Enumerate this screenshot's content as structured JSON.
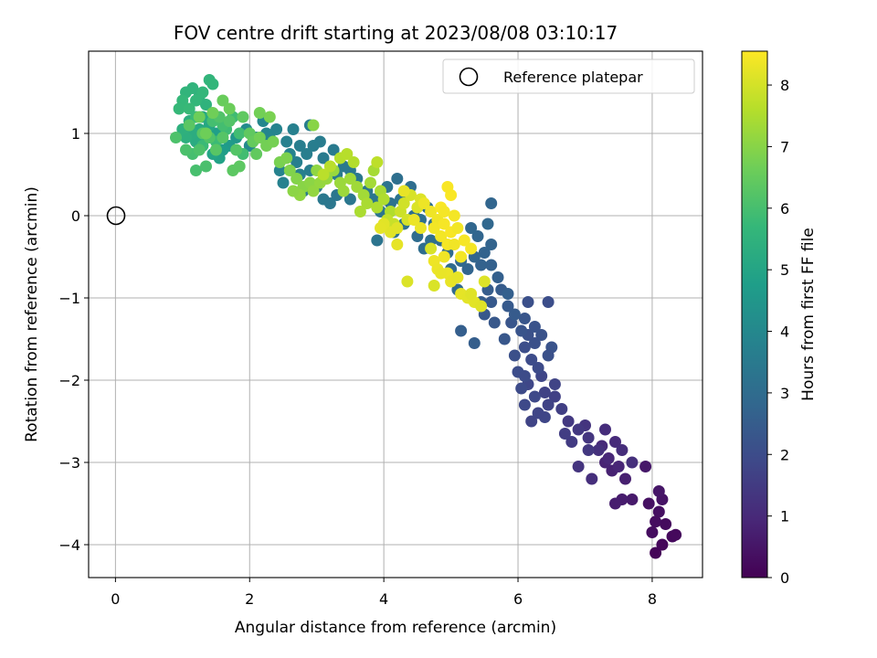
{
  "chart_data": {
    "type": "scatter",
    "title": "FOV centre drift starting at 2023/08/08 03:10:17",
    "xlabel": "Angular distance from reference (arcmin)",
    "ylabel": "Rotation from reference (arcmin)",
    "xlim": [
      -0.4,
      8.75
    ],
    "ylim": [
      -4.4,
      2.0
    ],
    "xticks": [
      0,
      2,
      4,
      6,
      8
    ],
    "yticks": [
      -4,
      -3,
      -2,
      -1,
      0,
      1
    ],
    "grid": true,
    "legend": {
      "position": "top-right",
      "entries": [
        "Reference platepar"
      ]
    },
    "reference_point": {
      "x": 0,
      "y": 0,
      "marker": "open-circle"
    },
    "colorbar": {
      "label": "Hours from first FF file",
      "range": [
        0,
        8.55
      ],
      "ticks": [
        0,
        1,
        2,
        3,
        4,
        5,
        6,
        7,
        8
      ],
      "colormap": "viridis",
      "stops": [
        "#440154",
        "#482878",
        "#3e4989",
        "#31688e",
        "#26828e",
        "#1f9e89",
        "#35b779",
        "#6ece58",
        "#b5de2b",
        "#fde725"
      ]
    },
    "points": [
      [
        8.05,
        -4.1,
        0.1
      ],
      [
        8.15,
        -4.0,
        0.15
      ],
      [
        8.3,
        -3.9,
        0.2
      ],
      [
        8.2,
        -3.75,
        0.25
      ],
      [
        8.0,
        -3.85,
        0.3
      ],
      [
        8.1,
        -3.6,
        0.35
      ],
      [
        7.95,
        -3.5,
        0.4
      ],
      [
        8.15,
        -3.45,
        0.45
      ],
      [
        8.1,
        -3.35,
        0.5
      ],
      [
        7.9,
        -3.05,
        0.55
      ],
      [
        8.35,
        -3.88,
        0.2
      ],
      [
        8.05,
        -3.72,
        0.3
      ],
      [
        7.7,
        -3.45,
        0.6
      ],
      [
        7.55,
        -3.45,
        0.65
      ],
      [
        7.45,
        -3.5,
        0.7
      ],
      [
        7.6,
        -3.2,
        0.75
      ],
      [
        7.4,
        -3.1,
        0.8
      ],
      [
        7.3,
        -3.0,
        0.85
      ],
      [
        7.5,
        -3.05,
        0.9
      ],
      [
        7.35,
        -2.95,
        0.95
      ],
      [
        7.25,
        -2.8,
        1.0
      ],
      [
        7.45,
        -2.75,
        1.05
      ],
      [
        7.3,
        -2.6,
        1.1
      ],
      [
        7.55,
        -2.85,
        1.12
      ],
      [
        7.1,
        -3.2,
        1.15
      ],
      [
        7.2,
        -2.85,
        1.2
      ],
      [
        7.7,
        -3.0,
        1.18
      ],
      [
        7.0,
        -2.55,
        1.3
      ],
      [
        7.05,
        -2.7,
        1.35
      ],
      [
        6.9,
        -2.6,
        1.4
      ],
      [
        7.05,
        -2.85,
        1.42
      ],
      [
        6.75,
        -2.5,
        1.45
      ],
      [
        6.8,
        -2.75,
        1.5
      ],
      [
        6.9,
        -3.05,
        1.3
      ],
      [
        6.7,
        -2.65,
        1.55
      ],
      [
        6.65,
        -2.35,
        1.6
      ],
      [
        6.55,
        -2.2,
        1.65
      ],
      [
        6.4,
        -2.15,
        1.7
      ],
      [
        6.45,
        -2.3,
        1.72
      ],
      [
        6.55,
        -2.05,
        1.75
      ],
      [
        6.35,
        -1.95,
        1.8
      ],
      [
        6.15,
        -2.05,
        1.85
      ],
      [
        6.25,
        -2.2,
        1.9
      ],
      [
        6.3,
        -1.85,
        1.95
      ],
      [
        6.05,
        -2.1,
        1.97
      ],
      [
        6.2,
        -1.75,
        2.0
      ],
      [
        6.0,
        -1.9,
        2.02
      ],
      [
        6.1,
        -1.6,
        2.05
      ],
      [
        6.25,
        -1.55,
        2.1
      ],
      [
        5.95,
        -1.7,
        2.12
      ],
      [
        6.15,
        -1.45,
        2.15
      ],
      [
        6.35,
        -1.45,
        2.17
      ],
      [
        6.5,
        -1.6,
        2.2
      ],
      [
        6.25,
        -1.35,
        2.22
      ],
      [
        6.05,
        -1.4,
        2.25
      ],
      [
        5.9,
        -1.3,
        2.27
      ],
      [
        6.1,
        -1.25,
        2.3
      ],
      [
        5.8,
        -1.5,
        2.32
      ],
      [
        5.65,
        -1.3,
        2.35
      ],
      [
        5.5,
        -1.2,
        2.37
      ],
      [
        5.6,
        -1.05,
        2.4
      ],
      [
        5.85,
        -1.1,
        2.42
      ],
      [
        5.95,
        -1.2,
        2.45
      ],
      [
        5.75,
        -0.9,
        2.47
      ],
      [
        5.55,
        -0.9,
        2.5
      ],
      [
        5.45,
        -1.05,
        2.52
      ],
      [
        5.35,
        -1.55,
        2.55
      ],
      [
        5.15,
        -1.4,
        2.57
      ],
      [
        6.15,
        -1.05,
        2.1
      ],
      [
        6.45,
        -1.05,
        2.05
      ],
      [
        6.1,
        -2.3,
        1.9
      ],
      [
        6.4,
        -2.45,
        1.8
      ],
      [
        6.2,
        -2.5,
        1.75
      ],
      [
        6.45,
        -1.7,
        2.15
      ],
      [
        6.1,
        -1.95,
        1.98
      ],
      [
        6.3,
        -2.4,
        1.78
      ],
      [
        5.85,
        -0.95,
        2.6
      ],
      [
        5.7,
        -0.75,
        2.62
      ],
      [
        5.6,
        -0.6,
        2.65
      ],
      [
        5.45,
        -0.6,
        2.67
      ],
      [
        5.5,
        -0.45,
        2.7
      ],
      [
        5.6,
        -0.35,
        2.72
      ],
      [
        5.35,
        -0.5,
        2.75
      ],
      [
        5.25,
        -0.65,
        2.77
      ],
      [
        5.4,
        -0.25,
        2.8
      ],
      [
        5.3,
        -0.15,
        2.82
      ],
      [
        5.55,
        -0.1,
        2.85
      ],
      [
        5.15,
        -0.55,
        2.87
      ],
      [
        5.05,
        -0.75,
        2.9
      ],
      [
        5.1,
        -0.9,
        2.92
      ],
      [
        5.0,
        -0.65,
        2.95
      ],
      [
        4.95,
        -0.45,
        2.97
      ],
      [
        4.85,
        -0.3,
        3.0
      ],
      [
        4.7,
        -0.3,
        3.02
      ],
      [
        4.6,
        -0.4,
        3.05
      ],
      [
        4.75,
        -0.1,
        3.07
      ],
      [
        4.55,
        -0.05,
        3.1
      ],
      [
        4.65,
        0.1,
        3.12
      ],
      [
        4.45,
        0.0,
        3.15
      ],
      [
        4.3,
        -0.1,
        3.17
      ],
      [
        4.15,
        -0.2,
        3.2
      ],
      [
        4.1,
        0.15,
        3.22
      ],
      [
        4.25,
        0.2,
        3.25
      ],
      [
        4.05,
        0.35,
        3.27
      ],
      [
        3.9,
        -0.3,
        3.3
      ],
      [
        3.95,
        0.05,
        3.32
      ],
      [
        3.85,
        0.2,
        3.35
      ],
      [
        4.2,
        0.45,
        3.1
      ],
      [
        4.4,
        0.35,
        3.05
      ],
      [
        5.6,
        0.15,
        2.8
      ],
      [
        4.5,
        -0.25,
        3.0
      ],
      [
        3.75,
        0.3,
        3.4
      ],
      [
        3.6,
        0.45,
        3.42
      ],
      [
        3.5,
        0.55,
        3.45
      ],
      [
        3.4,
        0.6,
        3.47
      ],
      [
        3.3,
        0.5,
        3.5
      ],
      [
        3.25,
        0.8,
        3.52
      ],
      [
        3.1,
        0.7,
        3.55
      ],
      [
        3.05,
        0.9,
        3.57
      ],
      [
        2.95,
        0.85,
        3.6
      ],
      [
        2.9,
        0.55,
        3.62
      ],
      [
        2.85,
        0.75,
        3.65
      ],
      [
        2.75,
        0.85,
        3.67
      ],
      [
        2.7,
        0.65,
        3.7
      ],
      [
        2.65,
        1.05,
        3.72
      ],
      [
        2.55,
        0.9,
        3.75
      ],
      [
        2.5,
        0.4,
        3.77
      ],
      [
        2.45,
        0.55,
        3.8
      ],
      [
        2.6,
        0.75,
        3.82
      ],
      [
        2.4,
        1.05,
        3.85
      ],
      [
        2.3,
        0.95,
        3.87
      ],
      [
        2.25,
        1.0,
        3.9
      ],
      [
        2.2,
        1.15,
        3.95
      ],
      [
        2.1,
        0.95,
        4.0
      ],
      [
        2.0,
        0.85,
        4.05
      ],
      [
        1.95,
        1.05,
        4.1
      ],
      [
        3.0,
        0.35,
        3.5
      ],
      [
        3.1,
        0.2,
        3.45
      ],
      [
        3.2,
        0.15,
        3.4
      ],
      [
        2.8,
        0.3,
        3.55
      ],
      [
        2.9,
        1.1,
        3.6
      ],
      [
        3.3,
        0.25,
        3.35
      ],
      [
        3.5,
        0.2,
        3.38
      ],
      [
        2.75,
        0.5,
        3.68
      ],
      [
        1.8,
        0.95,
        4.5
      ],
      [
        1.7,
        0.85,
        4.6
      ],
      [
        1.6,
        0.8,
        4.7
      ],
      [
        1.5,
        1.0,
        4.8
      ],
      [
        1.55,
        0.7,
        4.9
      ],
      [
        1.45,
        0.75,
        5.0
      ],
      [
        1.35,
        0.95,
        5.05
      ],
      [
        1.4,
        1.1,
        5.1
      ],
      [
        1.3,
        1.2,
        5.15
      ],
      [
        1.25,
        1.05,
        5.2
      ],
      [
        1.2,
        0.9,
        5.25
      ],
      [
        1.15,
        1.0,
        5.3
      ],
      [
        1.1,
        1.15,
        5.35
      ],
      [
        1.05,
        0.95,
        5.4
      ],
      [
        1.0,
        1.05,
        5.45
      ],
      [
        1.35,
        1.35,
        5.5
      ],
      [
        1.25,
        1.45,
        5.52
      ],
      [
        1.15,
        1.55,
        5.55
      ],
      [
        1.05,
        1.5,
        5.57
      ],
      [
        1.4,
        1.65,
        5.6
      ],
      [
        1.45,
        1.6,
        5.62
      ],
      [
        1.3,
        1.5,
        5.65
      ],
      [
        1.2,
        1.4,
        5.67
      ],
      [
        1.0,
        1.4,
        5.7
      ],
      [
        0.95,
        1.3,
        5.72
      ],
      [
        1.1,
        1.3,
        5.75
      ],
      [
        1.2,
        1.2,
        5.77
      ],
      [
        1.3,
        0.85,
        5.8
      ],
      [
        1.5,
        0.9,
        5.82
      ],
      [
        1.65,
        1.05,
        5.85
      ],
      [
        1.75,
        1.2,
        5.87
      ],
      [
        1.85,
        1.0,
        5.9
      ],
      [
        1.9,
        0.75,
        5.92
      ],
      [
        1.6,
        1.1,
        5.95
      ],
      [
        1.45,
        1.15,
        5.97
      ],
      [
        1.15,
        0.75,
        6.0
      ],
      [
        1.2,
        0.55,
        6.02
      ],
      [
        1.35,
        0.6,
        6.05
      ],
      [
        1.05,
        0.8,
        6.07
      ],
      [
        0.9,
        0.95,
        6.1
      ],
      [
        1.25,
        0.8,
        6.12
      ],
      [
        1.4,
        0.95,
        6.15
      ],
      [
        1.55,
        1.2,
        6.17
      ],
      [
        1.7,
        1.15,
        6.2
      ],
      [
        1.8,
        0.8,
        6.22
      ],
      [
        1.6,
        0.95,
        6.25
      ],
      [
        1.5,
        0.8,
        6.27
      ],
      [
        1.3,
        1.0,
        6.3
      ],
      [
        1.1,
        1.1,
        6.32
      ],
      [
        1.75,
        0.55,
        6.35
      ],
      [
        1.85,
        0.6,
        6.37
      ],
      [
        1.9,
        1.2,
        6.4
      ],
      [
        2.0,
        1.0,
        6.42
      ],
      [
        2.1,
        0.75,
        6.45
      ],
      [
        2.05,
        0.9,
        6.5
      ],
      [
        1.6,
        1.4,
        6.55
      ],
      [
        1.7,
        1.3,
        6.6
      ],
      [
        1.25,
        1.2,
        6.62
      ],
      [
        1.35,
        1.0,
        6.64
      ],
      [
        1.45,
        1.25,
        6.66
      ],
      [
        2.15,
        0.95,
        6.7
      ],
      [
        2.25,
        0.85,
        6.72
      ],
      [
        2.35,
        0.9,
        6.75
      ],
      [
        2.45,
        0.65,
        6.8
      ],
      [
        2.55,
        0.7,
        6.85
      ],
      [
        2.6,
        0.55,
        6.9
      ],
      [
        2.7,
        0.45,
        6.95
      ],
      [
        2.8,
        0.35,
        7.0
      ],
      [
        2.9,
        0.4,
        7.05
      ],
      [
        3.0,
        0.55,
        7.1
      ],
      [
        2.75,
        0.25,
        7.12
      ],
      [
        2.95,
        0.3,
        7.15
      ],
      [
        3.05,
        0.4,
        7.17
      ],
      [
        3.15,
        0.45,
        7.2
      ],
      [
        3.25,
        0.55,
        7.22
      ],
      [
        3.35,
        0.4,
        7.25
      ],
      [
        3.4,
        0.3,
        7.27
      ],
      [
        3.5,
        0.45,
        7.3
      ],
      [
        3.6,
        0.35,
        7.32
      ],
      [
        3.7,
        0.25,
        7.35
      ],
      [
        3.8,
        0.4,
        7.37
      ],
      [
        3.85,
        0.55,
        7.4
      ],
      [
        3.95,
        0.3,
        7.42
      ],
      [
        3.75,
        0.15,
        7.45
      ],
      [
        3.65,
        0.05,
        7.47
      ],
      [
        3.9,
        0.1,
        7.5
      ],
      [
        4.0,
        0.2,
        7.52
      ],
      [
        4.1,
        0.05,
        7.55
      ],
      [
        3.55,
        0.65,
        7.57
      ],
      [
        3.35,
        0.7,
        7.6
      ],
      [
        3.45,
        0.75,
        7.62
      ],
      [
        3.2,
        0.6,
        7.65
      ],
      [
        3.1,
        0.5,
        7.67
      ],
      [
        3.9,
        0.65,
        7.7
      ],
      [
        2.95,
        1.1,
        7.0
      ],
      [
        2.3,
        1.2,
        6.8
      ],
      [
        2.15,
        1.25,
        6.7
      ],
      [
        2.65,
        0.3,
        7.05
      ],
      [
        4.05,
        -0.05,
        7.8
      ],
      [
        4.15,
        -0.1,
        7.85
      ],
      [
        4.25,
        0.05,
        7.9
      ],
      [
        4.3,
        0.15,
        7.95
      ],
      [
        4.35,
        -0.05,
        8.0
      ],
      [
        4.4,
        0.25,
        8.05
      ],
      [
        4.5,
        0.1,
        8.1
      ],
      [
        4.55,
        0.2,
        8.12
      ],
      [
        4.2,
        -0.15,
        8.15
      ],
      [
        4.1,
        -0.2,
        8.17
      ],
      [
        4.0,
        -0.1,
        8.2
      ],
      [
        3.95,
        -0.15,
        8.22
      ],
      [
        4.2,
        -0.35,
        8.25
      ],
      [
        4.3,
        0.3,
        8.27
      ],
      [
        4.55,
        -0.15,
        8.3
      ],
      [
        4.45,
        -0.05,
        8.32
      ],
      [
        4.6,
        0.15,
        8.34
      ],
      [
        4.7,
        0.05,
        8.36
      ],
      [
        4.8,
        -0.05,
        8.38
      ],
      [
        4.75,
        -0.15,
        8.4
      ],
      [
        4.85,
        -0.25,
        8.42
      ],
      [
        4.95,
        -0.35,
        8.44
      ],
      [
        4.9,
        -0.1,
        8.46
      ],
      [
        5.0,
        -0.2,
        8.48
      ],
      [
        4.85,
        0.1,
        8.5
      ],
      [
        4.9,
        0.05,
        8.45
      ],
      [
        5.05,
        0.0,
        8.43
      ],
      [
        5.1,
        -0.15,
        8.41
      ],
      [
        5.05,
        -0.35,
        8.39
      ],
      [
        4.9,
        -0.5,
        8.37
      ],
      [
        4.75,
        -0.55,
        8.35
      ],
      [
        4.8,
        -0.65,
        8.33
      ],
      [
        4.95,
        -0.7,
        8.31
      ],
      [
        4.85,
        -0.7,
        8.29
      ],
      [
        5.0,
        -0.8,
        8.27
      ],
      [
        5.1,
        -0.75,
        8.25
      ],
      [
        5.15,
        -0.95,
        8.23
      ],
      [
        5.25,
        -1.0,
        8.21
      ],
      [
        5.35,
        -1.05,
        8.19
      ],
      [
        5.45,
        -1.1,
        8.17
      ],
      [
        5.3,
        -0.95,
        8.15
      ],
      [
        5.5,
        -0.8,
        8.13
      ],
      [
        4.35,
        -0.8,
        8.1
      ],
      [
        4.75,
        -0.85,
        8.08
      ],
      [
        4.7,
        -0.4,
        8.06
      ],
      [
        5.0,
        0.25,
        8.5
      ],
      [
        4.95,
        0.35,
        8.48
      ],
      [
        5.2,
        -0.3,
        8.46
      ],
      [
        5.3,
        -0.4,
        8.44
      ],
      [
        5.15,
        -0.5,
        8.42
      ]
    ]
  }
}
